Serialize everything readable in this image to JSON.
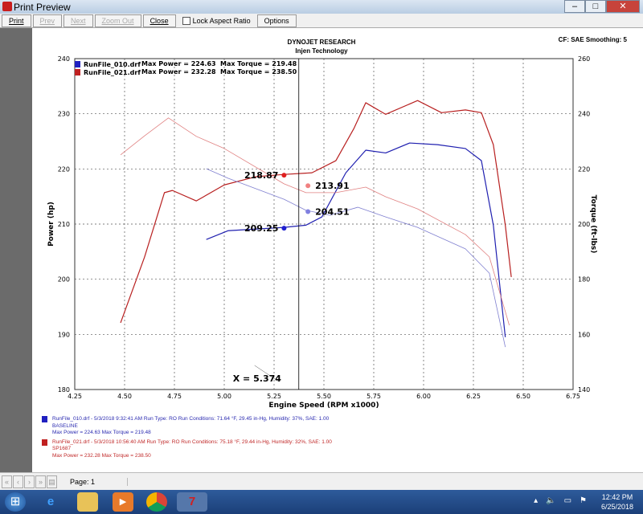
{
  "window": {
    "title": "Print Preview",
    "controls": [
      "–",
      "□",
      "✕"
    ]
  },
  "toolbar": {
    "print": "Print",
    "prev": "Prev",
    "next": "Next",
    "zoom_out": "Zoom Out",
    "close": "Close",
    "lock_aspect": "Lock Aspect Ratio",
    "lock_checked": false,
    "options": "Options"
  },
  "report": {
    "company": "DYNOJET RESEARCH",
    "subtitle": "Injen Technology",
    "settings": "CF: SAE  Smoothing: 5"
  },
  "legend": [
    {
      "file": "RunFile_010.drf",
      "max_power": "Max Power = 224.63",
      "max_torque": "Max Torque = 219.48",
      "color": "#2020c0"
    },
    {
      "file": "RunFile_021.drf",
      "max_power": "Max Power = 232.28",
      "max_torque": "Max Torque = 238.50",
      "color": "#c02020"
    }
  ],
  "notes": [
    {
      "line1": "RunFile_010.drf - 5/3/2018 9:32:41 AM  Run Type: RO  Run Conditions: 71.64 °F, 29.45 in-Hg,  Humidity:  37%, SAE: 1.00",
      "line2": "BASELINE",
      "line3": "Max Power = 224.63  Max Torque = 219.48",
      "color": "#2a2ab0"
    },
    {
      "line1": "RunFile_021.drf - 5/3/2018 10:56:40 AM  Run Type: RO  Run Conditions: 75.18 °F, 29.44 in-Hg,  Humidity:  32%, SAE: 1.00",
      "line2": "SP1687",
      "line3": "Max Power = 232.28  Max Torque = 238.50",
      "color": "#c02828"
    }
  ],
  "chart_data": {
    "type": "line",
    "xlabel": "Engine Speed (RPM x1000)",
    "ylabel": "Power (hp)",
    "y2label": "Torque (ft-lbs)",
    "xlim": [
      4.25,
      6.75
    ],
    "ylim": [
      180,
      240
    ],
    "y2lim": [
      140,
      260
    ],
    "xticks": [
      "4.25",
      "4.50",
      "4.75",
      "5.00",
      "5.25",
      "5.50",
      "5.75",
      "6.00",
      "6.25",
      "6.50",
      "6.75"
    ],
    "yticks": [
      "180",
      "190",
      "200",
      "210",
      "220",
      "230",
      "240"
    ],
    "y2ticks": [
      "140",
      "160",
      "180",
      "200",
      "220",
      "240",
      "260"
    ],
    "grid": true,
    "cursor": {
      "x": 5.374,
      "label": "X = 5.374"
    },
    "series": [
      {
        "name": "RunFile_021.drf Power",
        "axis": "left",
        "color": "#b82020",
        "width": 1.2,
        "x": [
          4.48,
          4.6,
          4.7,
          4.74,
          4.86,
          5.0,
          5.16,
          5.3,
          5.44,
          5.56,
          5.65,
          5.71,
          5.81,
          5.97,
          6.09,
          6.21,
          6.29,
          6.35,
          6.41,
          6.44
        ],
        "y": [
          192.1,
          204,
          215.7,
          216.1,
          214.2,
          217.1,
          218.6,
          219.0,
          219.3,
          221.5,
          227.3,
          232,
          229.9,
          232.4,
          230.2,
          230.7,
          230.2,
          224.4,
          209.8,
          200.4
        ]
      },
      {
        "name": "RunFile_010.drf Power",
        "axis": "left",
        "color": "#2020b0",
        "width": 1.2,
        "x": [
          4.91,
          5.02,
          5.3,
          5.41,
          5.49,
          5.61,
          5.71,
          5.81,
          5.93,
          6.07,
          6.21,
          6.29,
          6.35,
          6.41
        ],
        "y": [
          207.2,
          208.8,
          209.4,
          209.8,
          211.3,
          219.3,
          223.4,
          222.9,
          224.7,
          224.4,
          223.7,
          221.5,
          209.8,
          189.5
        ]
      },
      {
        "name": "RunFile_021.drf Torque",
        "axis": "right",
        "color": "#e08080",
        "width": 0.8,
        "x": [
          4.48,
          4.6,
          4.72,
          4.86,
          5.0,
          5.3,
          5.41,
          5.56,
          5.71,
          5.81,
          5.97,
          6.21,
          6.33,
          6.43
        ],
        "y": [
          225.1,
          232,
          238.5,
          231.8,
          227.4,
          214.6,
          211.4,
          211.4,
          213.4,
          209.9,
          205.5,
          196.2,
          188.1,
          163.3
        ]
      },
      {
        "name": "RunFile_010.drf Torque",
        "axis": "right",
        "color": "#8080d0",
        "width": 0.8,
        "x": [
          4.91,
          5.02,
          5.3,
          5.41,
          5.53,
          5.67,
          5.81,
          5.97,
          6.21,
          6.33,
          6.41
        ],
        "y": [
          220.1,
          216.6,
          209.0,
          205,
          203.2,
          206.1,
          202.6,
          198.8,
          191.0,
          182.2,
          155.4
        ]
      }
    ],
    "markers": [
      {
        "label": "218.87",
        "x": 5.3,
        "y": 218.87,
        "axis": "left",
        "color": "#e02020",
        "side": "left"
      },
      {
        "label": "209.25",
        "x": 5.3,
        "y": 209.25,
        "axis": "left",
        "color": "#2020d0",
        "side": "left"
      },
      {
        "label": "213.91",
        "x": 5.42,
        "y": 213.91,
        "axis": "right",
        "color": "#f08080",
        "side": "right"
      },
      {
        "label": "204.51",
        "x": 5.42,
        "y": 204.51,
        "axis": "right",
        "color": "#8080e0",
        "side": "right"
      }
    ]
  },
  "statusbar": {
    "page": "Page: 1",
    "nav": [
      "«",
      "‹",
      "›",
      "»",
      "▤"
    ]
  },
  "taskbar": {
    "time": "12:42 PM",
    "date": "6/25/2018",
    "apps": [
      "start",
      "internet-explorer",
      "file-explorer",
      "media-player",
      "chrome",
      "dynojet"
    ]
  }
}
